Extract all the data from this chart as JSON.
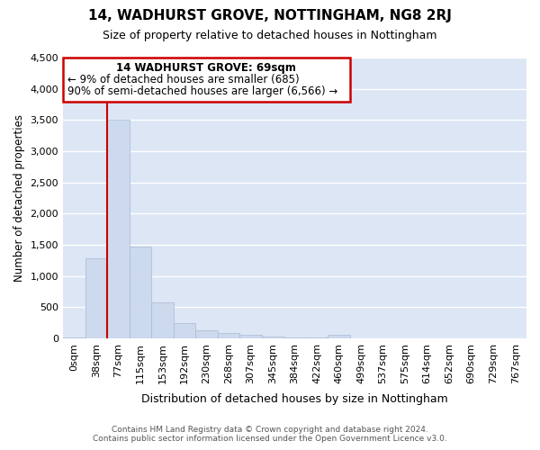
{
  "title": "14, WADHURST GROVE, NOTTINGHAM, NG8 2RJ",
  "subtitle": "Size of property relative to detached houses in Nottingham",
  "xlabel": "Distribution of detached houses by size in Nottingham",
  "ylabel": "Number of detached properties",
  "bar_color": "#cdd9ed",
  "bar_edge_color": "#aabbd4",
  "background_color": "#dce6f5",
  "fig_background_color": "#ffffff",
  "annotation_box_color": "#ffffff",
  "annotation_border_color": "#cc0000",
  "vline_color": "#cc0000",
  "grid_color": "#ffffff",
  "bins": [
    "0sqm",
    "38sqm",
    "77sqm",
    "115sqm",
    "153sqm",
    "192sqm",
    "230sqm",
    "268sqm",
    "307sqm",
    "345sqm",
    "384sqm",
    "422sqm",
    "460sqm",
    "499sqm",
    "537sqm",
    "575sqm",
    "614sqm",
    "652sqm",
    "690sqm",
    "729sqm",
    "767sqm"
  ],
  "values": [
    20,
    1280,
    3500,
    1470,
    575,
    240,
    130,
    80,
    50,
    30,
    20,
    20,
    50,
    5,
    0,
    0,
    0,
    0,
    0,
    0,
    0
  ],
  "ylim": [
    0,
    4500
  ],
  "yticks": [
    0,
    500,
    1000,
    1500,
    2000,
    2500,
    3000,
    3500,
    4000,
    4500
  ],
  "annotation_line1": "14 WADHURST GROVE: 69sqm",
  "annotation_line2": "← 9% of detached houses are smaller (685)",
  "annotation_line3": "90% of semi-detached houses are larger (6,566) →",
  "vline_x_index": 2.0,
  "footer_line1": "Contains HM Land Registry data © Crown copyright and database right 2024.",
  "footer_line2": "Contains public sector information licensed under the Open Government Licence v3.0."
}
